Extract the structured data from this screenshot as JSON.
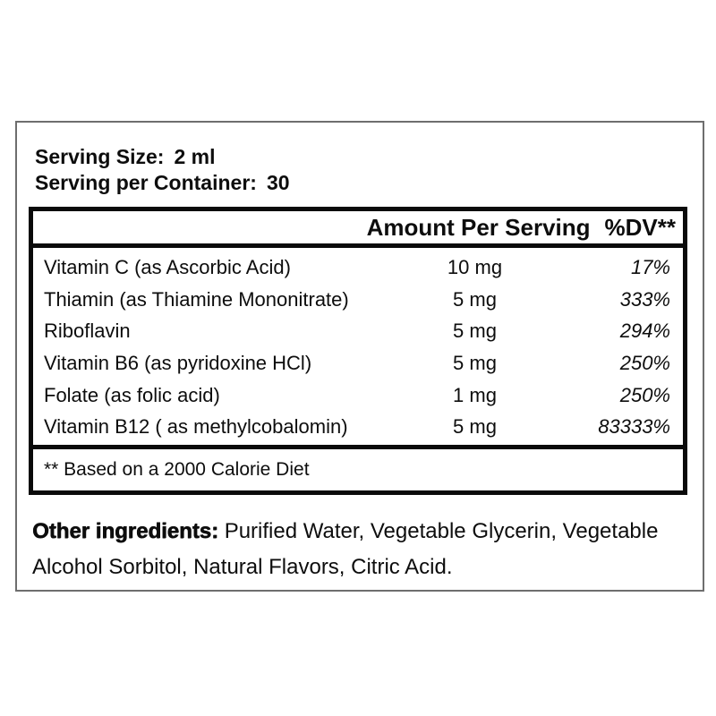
{
  "panel": {
    "serving_size": {
      "label": "Serving Size:",
      "value": "2 ml"
    },
    "serving_per_container": {
      "label": "Serving per Container:",
      "value": "30"
    },
    "table": {
      "header_amount": "Amount Per Serving",
      "header_dv": "%DV**",
      "rows": [
        {
          "name": "Vitamin C (as Ascorbic Acid)",
          "amount": "10 mg",
          "dv": "17%"
        },
        {
          "name": "Thiamin (as Thiamine Mononitrate)",
          "amount": "5 mg",
          "dv": "333%"
        },
        {
          "name": "Riboflavin",
          "amount": "5 mg",
          "dv": "294%"
        },
        {
          "name": "Vitamin B6 (as pyridoxine HCl)",
          "amount": "5 mg",
          "dv": "250%"
        },
        {
          "name": "Folate (as folic acid)",
          "amount": "1 mg",
          "dv": "250%"
        },
        {
          "name": "Vitamin B12 ( as methylcobalomin)",
          "amount": "5 mg",
          "dv": "83333%"
        }
      ],
      "footnote": "** Based on a 2000 Calorie Diet"
    },
    "other_ingredients": {
      "label": "Other ingredients:",
      "text": "Purified Water, Vegetable Glycerin, Vegetable Alcohol Sorbitol, Natural Flavors, Citric Acid."
    },
    "colors": {
      "text": "#0d0d0d",
      "table_border": "#0a0a0a",
      "outer_border": "#6e6e6e",
      "background": "#ffffff"
    }
  }
}
